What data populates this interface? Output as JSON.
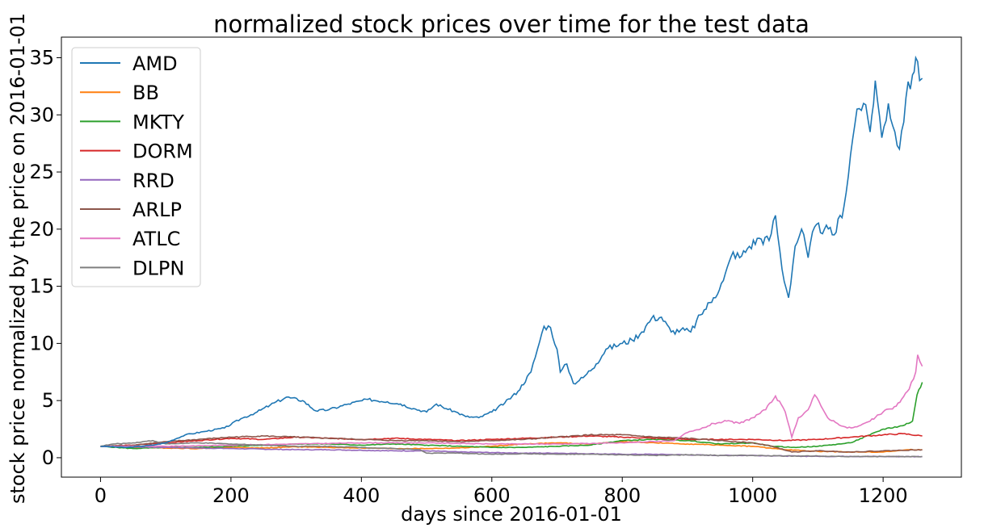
{
  "chart_data": {
    "type": "line",
    "title": "normalized stock prices over time for the test data",
    "xlabel": "days since 2016-01-01",
    "ylabel": "stock price normalized by the price on 2016-01-01",
    "xlim": [
      -60,
      1320
    ],
    "ylim": [
      -1.7,
      36.8
    ],
    "xticks": [
      0,
      200,
      400,
      600,
      800,
      1000,
      1200
    ],
    "yticks": [
      0,
      5,
      10,
      15,
      20,
      25,
      30,
      35
    ],
    "grid": false,
    "legend": "upper left",
    "series": [
      {
        "name": "AMD",
        "color": "#1f77b4",
        "points": [
          [
            0,
            1.0
          ],
          [
            40,
            0.9
          ],
          [
            80,
            1.1
          ],
          [
            100,
            1.3
          ],
          [
            130,
            2.0
          ],
          [
            160,
            2.3
          ],
          [
            190,
            2.6
          ],
          [
            215,
            3.4
          ],
          [
            240,
            4.0
          ],
          [
            260,
            4.6
          ],
          [
            285,
            5.3
          ],
          [
            310,
            5.0
          ],
          [
            330,
            4.1
          ],
          [
            350,
            4.2
          ],
          [
            380,
            4.7
          ],
          [
            410,
            5.1
          ],
          [
            440,
            4.9
          ],
          [
            460,
            4.7
          ],
          [
            480,
            4.3
          ],
          [
            500,
            4.0
          ],
          [
            515,
            4.7
          ],
          [
            530,
            4.3
          ],
          [
            545,
            4.0
          ],
          [
            560,
            3.6
          ],
          [
            580,
            3.5
          ],
          [
            600,
            4.0
          ],
          [
            620,
            4.8
          ],
          [
            640,
            5.8
          ],
          [
            660,
            7.5
          ],
          [
            670,
            9.5
          ],
          [
            680,
            11.5
          ],
          [
            690,
            11.4
          ],
          [
            700,
            9.5
          ],
          [
            705,
            7.5
          ],
          [
            715,
            8.2
          ],
          [
            725,
            6.5
          ],
          [
            740,
            7.0
          ],
          [
            760,
            8.2
          ],
          [
            775,
            9.5
          ],
          [
            800,
            10.0
          ],
          [
            815,
            10.3
          ],
          [
            830,
            11.0
          ],
          [
            845,
            12.2
          ],
          [
            860,
            12.3
          ],
          [
            875,
            11.0
          ],
          [
            890,
            11.2
          ],
          [
            905,
            11.0
          ],
          [
            920,
            12.5
          ],
          [
            940,
            14.0
          ],
          [
            955,
            15.5
          ],
          [
            970,
            18.0
          ],
          [
            980,
            17.5
          ],
          [
            995,
            18.5
          ],
          [
            1010,
            19.2
          ],
          [
            1025,
            19.0
          ],
          [
            1035,
            21.2
          ],
          [
            1045,
            16.5
          ],
          [
            1055,
            14.0
          ],
          [
            1065,
            18.5
          ],
          [
            1075,
            20.0
          ],
          [
            1085,
            17.5
          ],
          [
            1095,
            20.2
          ],
          [
            1110,
            20.0
          ],
          [
            1125,
            19.5
          ],
          [
            1140,
            22.0
          ],
          [
            1150,
            26.5
          ],
          [
            1160,
            30.5
          ],
          [
            1170,
            31.0
          ],
          [
            1180,
            28.5
          ],
          [
            1188,
            33.0
          ],
          [
            1198,
            28.0
          ],
          [
            1208,
            31.0
          ],
          [
            1218,
            28.5
          ],
          [
            1225,
            27.0
          ],
          [
            1235,
            31.5
          ],
          [
            1245,
            33.5
          ],
          [
            1250,
            35.0
          ],
          [
            1256,
            33.0
          ],
          [
            1260,
            33.2
          ]
        ]
      },
      {
        "name": "BB",
        "color": "#ff7f0e",
        "points": [
          [
            0,
            1.0
          ],
          [
            50,
            0.9
          ],
          [
            100,
            0.85
          ],
          [
            150,
            0.8
          ],
          [
            200,
            0.9
          ],
          [
            250,
            0.85
          ],
          [
            300,
            0.95
          ],
          [
            350,
            0.9
          ],
          [
            400,
            0.85
          ],
          [
            450,
            0.8
          ],
          [
            500,
            0.8
          ],
          [
            550,
            0.85
          ],
          [
            600,
            1.0
          ],
          [
            650,
            1.2
          ],
          [
            700,
            1.3
          ],
          [
            750,
            1.2
          ],
          [
            800,
            1.4
          ],
          [
            850,
            1.3
          ],
          [
            900,
            1.2
          ],
          [
            950,
            1.1
          ],
          [
            1000,
            1.0
          ],
          [
            1050,
            0.7
          ],
          [
            1100,
            0.55
          ],
          [
            1150,
            0.5
          ],
          [
            1200,
            0.5
          ],
          [
            1240,
            0.7
          ],
          [
            1260,
            0.7
          ]
        ]
      },
      {
        "name": "MKTY",
        "color": "#2ca02c",
        "points": [
          [
            0,
            1.0
          ],
          [
            50,
            0.8
          ],
          [
            100,
            0.9
          ],
          [
            150,
            0.9
          ],
          [
            200,
            1.0
          ],
          [
            250,
            1.1
          ],
          [
            300,
            1.2
          ],
          [
            350,
            1.2
          ],
          [
            400,
            1.1
          ],
          [
            450,
            1.2
          ],
          [
            500,
            1.1
          ],
          [
            550,
            1.0
          ],
          [
            600,
            0.9
          ],
          [
            650,
            0.9
          ],
          [
            700,
            1.0
          ],
          [
            750,
            1.1
          ],
          [
            800,
            1.5
          ],
          [
            850,
            1.6
          ],
          [
            900,
            1.5
          ],
          [
            950,
            1.2
          ],
          [
            1000,
            1.3
          ],
          [
            1030,
            1.0
          ],
          [
            1060,
            0.9
          ],
          [
            1100,
            1.0
          ],
          [
            1150,
            1.3
          ],
          [
            1180,
            2.0
          ],
          [
            1200,
            2.5
          ],
          [
            1230,
            2.8
          ],
          [
            1245,
            3.2
          ],
          [
            1252,
            5.5
          ],
          [
            1260,
            6.6
          ]
        ]
      },
      {
        "name": "DORM",
        "color": "#d62728",
        "points": [
          [
            0,
            1.0
          ],
          [
            50,
            1.1
          ],
          [
            100,
            1.3
          ],
          [
            150,
            1.5
          ],
          [
            200,
            1.7
          ],
          [
            250,
            1.6
          ],
          [
            300,
            1.8
          ],
          [
            350,
            1.7
          ],
          [
            400,
            1.6
          ],
          [
            450,
            1.7
          ],
          [
            500,
            1.6
          ],
          [
            550,
            1.5
          ],
          [
            600,
            1.6
          ],
          [
            650,
            1.7
          ],
          [
            700,
            1.8
          ],
          [
            750,
            1.9
          ],
          [
            800,
            1.8
          ],
          [
            850,
            1.7
          ],
          [
            900,
            1.6
          ],
          [
            950,
            1.6
          ],
          [
            1000,
            1.6
          ],
          [
            1050,
            1.5
          ],
          [
            1100,
            1.6
          ],
          [
            1150,
            1.8
          ],
          [
            1200,
            2.0
          ],
          [
            1230,
            2.1
          ],
          [
            1260,
            1.9
          ]
        ]
      },
      {
        "name": "RRD",
        "color": "#9467bd",
        "points": [
          [
            0,
            1.0
          ],
          [
            50,
            0.95
          ],
          [
            100,
            0.9
          ],
          [
            150,
            0.85
          ],
          [
            200,
            0.8
          ],
          [
            250,
            0.75
          ],
          [
            300,
            0.7
          ],
          [
            350,
            0.7
          ],
          [
            400,
            0.65
          ],
          [
            450,
            0.6
          ],
          [
            500,
            0.6
          ],
          [
            550,
            0.5
          ],
          [
            600,
            0.45
          ],
          [
            650,
            0.4
          ],
          [
            700,
            0.4
          ],
          [
            750,
            0.35
          ],
          [
            800,
            0.3
          ],
          [
            850,
            0.3
          ],
          [
            900,
            0.25
          ],
          [
            950,
            0.2
          ],
          [
            1000,
            0.2
          ],
          [
            1050,
            0.15
          ],
          [
            1100,
            0.12
          ],
          [
            1150,
            0.12
          ],
          [
            1200,
            0.1
          ],
          [
            1260,
            0.1
          ]
        ]
      },
      {
        "name": "ARLP",
        "color": "#8c564b",
        "points": [
          [
            0,
            1.0
          ],
          [
            50,
            1.1
          ],
          [
            100,
            1.4
          ],
          [
            150,
            1.6
          ],
          [
            200,
            1.8
          ],
          [
            250,
            1.9
          ],
          [
            300,
            1.8
          ],
          [
            350,
            1.7
          ],
          [
            400,
            1.6
          ],
          [
            450,
            1.5
          ],
          [
            500,
            1.5
          ],
          [
            550,
            1.4
          ],
          [
            600,
            1.5
          ],
          [
            650,
            1.6
          ],
          [
            700,
            1.8
          ],
          [
            750,
            2.0
          ],
          [
            800,
            2.0
          ],
          [
            850,
            1.8
          ],
          [
            900,
            1.7
          ],
          [
            950,
            1.5
          ],
          [
            1000,
            1.3
          ],
          [
            1030,
            1.0
          ],
          [
            1060,
            0.5
          ],
          [
            1100,
            0.6
          ],
          [
            1150,
            0.5
          ],
          [
            1200,
            0.6
          ],
          [
            1260,
            0.7
          ]
        ]
      },
      {
        "name": "ATLC",
        "color": "#e377c2",
        "points": [
          [
            0,
            1.0
          ],
          [
            100,
            1.0
          ],
          [
            200,
            1.1
          ],
          [
            300,
            1.2
          ],
          [
            400,
            1.3
          ],
          [
            500,
            1.3
          ],
          [
            600,
            1.2
          ],
          [
            700,
            1.2
          ],
          [
            800,
            1.3
          ],
          [
            880,
            1.5
          ],
          [
            900,
            2.2
          ],
          [
            920,
            2.5
          ],
          [
            940,
            3.0
          ],
          [
            960,
            3.2
          ],
          [
            980,
            3.0
          ],
          [
            1000,
            3.5
          ],
          [
            1020,
            4.2
          ],
          [
            1035,
            5.4
          ],
          [
            1050,
            4.0
          ],
          [
            1060,
            1.8
          ],
          [
            1070,
            3.5
          ],
          [
            1085,
            4.2
          ],
          [
            1095,
            5.5
          ],
          [
            1105,
            4.5
          ],
          [
            1115,
            3.5
          ],
          [
            1130,
            3.0
          ],
          [
            1145,
            2.6
          ],
          [
            1160,
            2.7
          ],
          [
            1180,
            3.2
          ],
          [
            1200,
            4.0
          ],
          [
            1220,
            4.5
          ],
          [
            1240,
            6.0
          ],
          [
            1250,
            7.5
          ],
          [
            1253,
            9.0
          ],
          [
            1260,
            8.0
          ]
        ]
      },
      {
        "name": "DLPN",
        "color": "#7f7f7f",
        "points": [
          [
            0,
            1.0
          ],
          [
            20,
            1.2
          ],
          [
            50,
            1.3
          ],
          [
            80,
            1.5
          ],
          [
            100,
            1.2
          ],
          [
            150,
            1.3
          ],
          [
            200,
            1.2
          ],
          [
            250,
            1.1
          ],
          [
            300,
            1.0
          ],
          [
            350,
            1.0
          ],
          [
            400,
            0.9
          ],
          [
            450,
            0.8
          ],
          [
            490,
            0.7
          ],
          [
            500,
            0.4
          ],
          [
            550,
            0.4
          ],
          [
            600,
            0.3
          ],
          [
            650,
            0.35
          ],
          [
            700,
            0.3
          ],
          [
            750,
            0.3
          ],
          [
            800,
            0.25
          ],
          [
            850,
            0.2
          ],
          [
            900,
            0.25
          ],
          [
            950,
            0.2
          ],
          [
            1000,
            0.2
          ],
          [
            1050,
            0.15
          ],
          [
            1100,
            0.15
          ],
          [
            1150,
            0.1
          ],
          [
            1200,
            0.1
          ],
          [
            1260,
            0.1
          ]
        ]
      }
    ]
  }
}
